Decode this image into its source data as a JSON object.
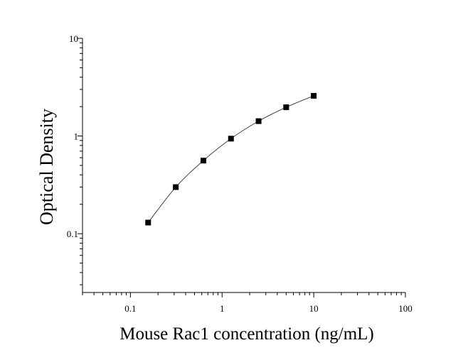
{
  "chart_data": {
    "type": "scatter",
    "xlabel": "Mouse Rac1 concentration (ng/mL)",
    "ylabel": "Optical Density",
    "x_scale": "log",
    "y_scale": "log",
    "xlim": [
      0.03,
      100
    ],
    "ylim": [
      0.025,
      10
    ],
    "x_ticks": [
      {
        "value": 0.1,
        "label": "0.1"
      },
      {
        "value": 1,
        "label": "1"
      },
      {
        "value": 10,
        "label": "10"
      },
      {
        "value": 100,
        "label": "100"
      }
    ],
    "y_ticks": [
      {
        "value": 0.1,
        "label": "0.1"
      },
      {
        "value": 1,
        "label": "1"
      },
      {
        "value": 10,
        "label": "10"
      }
    ],
    "grid": false,
    "series": [
      {
        "x": [
          0.156,
          0.3125,
          0.625,
          1.25,
          2.5,
          5,
          10
        ],
        "y": [
          0.13,
          0.3,
          0.56,
          0.94,
          1.42,
          1.97,
          2.58
        ],
        "fit_curve": true,
        "color": "#000000"
      }
    ]
  }
}
